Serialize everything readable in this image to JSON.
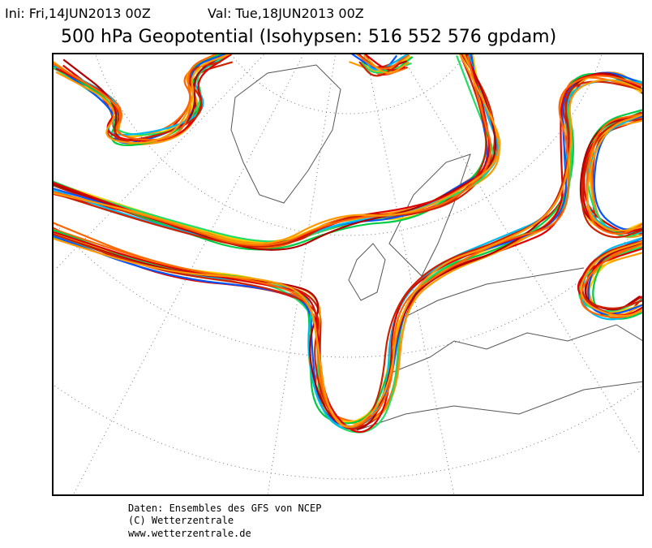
{
  "header": {
    "init": "Ini: Fri,14JUN2013 00Z",
    "valid": "Val: Tue,18JUN2013 00Z",
    "title": "500 hPa Geopotential (Isohypsen: 516 552 576 gpdam)"
  },
  "footer": {
    "lines": [
      "Daten: Ensembles des GFS von NCEP",
      "(C) Wetterzentrale",
      "www.wetterzentrale.de"
    ]
  }
}
